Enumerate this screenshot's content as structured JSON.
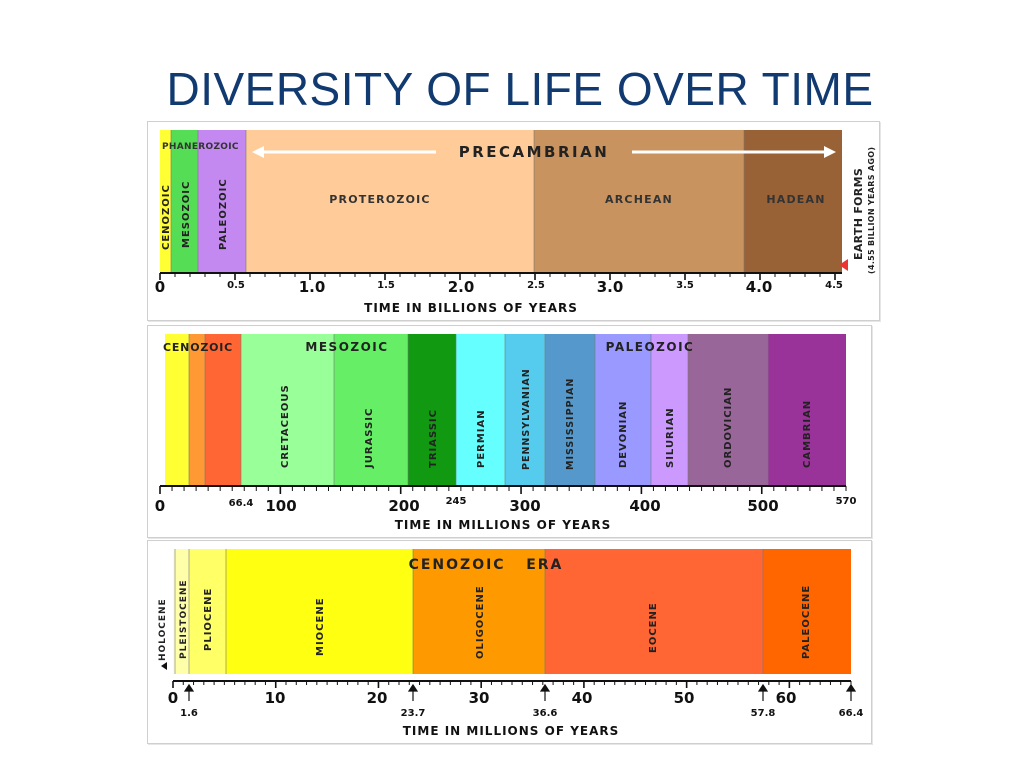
{
  "title": "DIVERSITY OF LIFE OVER TIME",
  "panel1": {
    "header_left": "PHANEROZOIC",
    "header_right": "PRECAMBRIAN",
    "segments": [
      {
        "label": "CENOZOIC",
        "color": "#ffff33"
      },
      {
        "label": "MESOZOIC",
        "color": "#55dd55"
      },
      {
        "label": "PALEOZOIC",
        "color": "#c489f0"
      },
      {
        "label": "PROTEROZOIC",
        "color": "#ffcc99"
      },
      {
        "label": "ARCHEAN",
        "color": "#c8935f"
      },
      {
        "label": "HADEAN",
        "color": "#986236"
      }
    ],
    "ticks_major": [
      "0",
      "1.0",
      "2.0",
      "3.0",
      "4.0"
    ],
    "ticks_minor": [
      "0.5",
      "1.5",
      "2.5",
      "3.5",
      "4.5"
    ],
    "side_label_1": "EARTH FORMS",
    "side_label_2": "(4.55 BILLION YEARS AGO)",
    "axis_label": "TIME IN BILLIONS OF YEARS"
  },
  "panel2": {
    "headers": [
      "CENOZOIC",
      "MESOZOIC",
      "PALEOZOIC"
    ],
    "periods": [
      {
        "label": "",
        "color": "#ffff33"
      },
      {
        "label": "",
        "color": "#ff9933"
      },
      {
        "label": "",
        "color": "#ff6633"
      },
      {
        "label": "CRETACEOUS",
        "color": "#99ff99"
      },
      {
        "label": "JURASSIC",
        "color": "#66ee66"
      },
      {
        "label": "TRIASSIC",
        "color": "#119911"
      },
      {
        "label": "PERMIAN",
        "color": "#66ffff"
      },
      {
        "label": "PENNSYLVANIAN",
        "color": "#55ccee"
      },
      {
        "label": "MISSISSIPPIAN",
        "color": "#5599cc"
      },
      {
        "label": "DEVONIAN",
        "color": "#9999ff"
      },
      {
        "label": "SILURIAN",
        "color": "#cc99ff"
      },
      {
        "label": "ORDOVICIAN",
        "color": "#996699"
      },
      {
        "label": "CAMBRIAN",
        "color": "#993399"
      }
    ],
    "ticks_major": [
      "0",
      "100",
      "200",
      "300",
      "400",
      "500"
    ],
    "ticks_minor": [
      "66.4",
      "245",
      "570"
    ],
    "axis_label": "TIME IN MILLIONS OF YEARS"
  },
  "panel3": {
    "header": "CENOZOIC   ERA",
    "epochs": [
      {
        "label": "",
        "color": "#ffffcc"
      },
      {
        "label": "PLEISTOCENE",
        "color": "#ffffaa"
      },
      {
        "label": "PLIOCENE",
        "color": "#ffff66"
      },
      {
        "label": "MIOCENE",
        "color": "#ffff11"
      },
      {
        "label": "OLIGOCENE",
        "color": "#ff9900"
      },
      {
        "label": "EOCENE",
        "color": "#ff6633"
      },
      {
        "label": "PALEOCENE",
        "color": "#ff6600"
      }
    ],
    "side_label": "HOLOCENE",
    "ticks_major": [
      "0",
      "10",
      "20",
      "30",
      "40",
      "50",
      "60"
    ],
    "ticks_minor": [
      "1.6",
      "23.7",
      "36.6",
      "57.8",
      "66.4"
    ],
    "axis_label": "TIME IN MILLIONS OF YEARS"
  }
}
